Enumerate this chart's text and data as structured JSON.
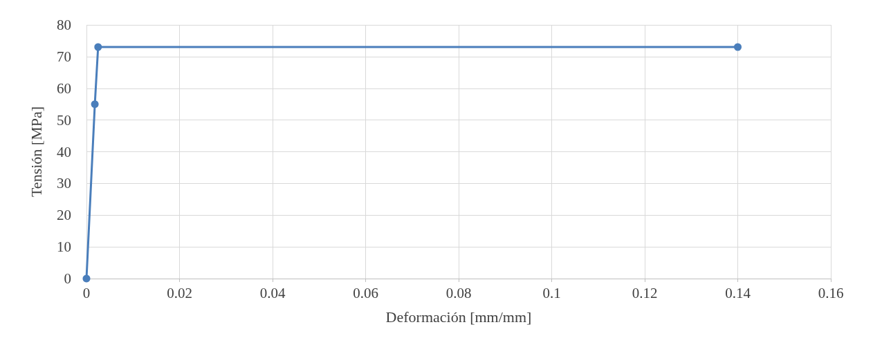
{
  "chart_data": {
    "type": "line",
    "xlabel": "Deformación [mm/mm]",
    "ylabel": "Tensión [MPa]",
    "x": [
      0,
      0.0018,
      0.0025,
      0.14
    ],
    "series": [
      {
        "color": "#4a7ebb",
        "values": [
          0,
          55,
          73,
          73
        ]
      }
    ],
    "xlim": [
      0,
      0.16
    ],
    "xticks": [
      0,
      0.02,
      0.04,
      0.06,
      0.08,
      0.1,
      0.12,
      0.14,
      0.16
    ],
    "ylim": [
      0,
      80
    ],
    "yticks": [
      0,
      10,
      20,
      30,
      40,
      50,
      60,
      70,
      80
    ],
    "grid": true,
    "marker": "circle",
    "line_style": "solid"
  }
}
